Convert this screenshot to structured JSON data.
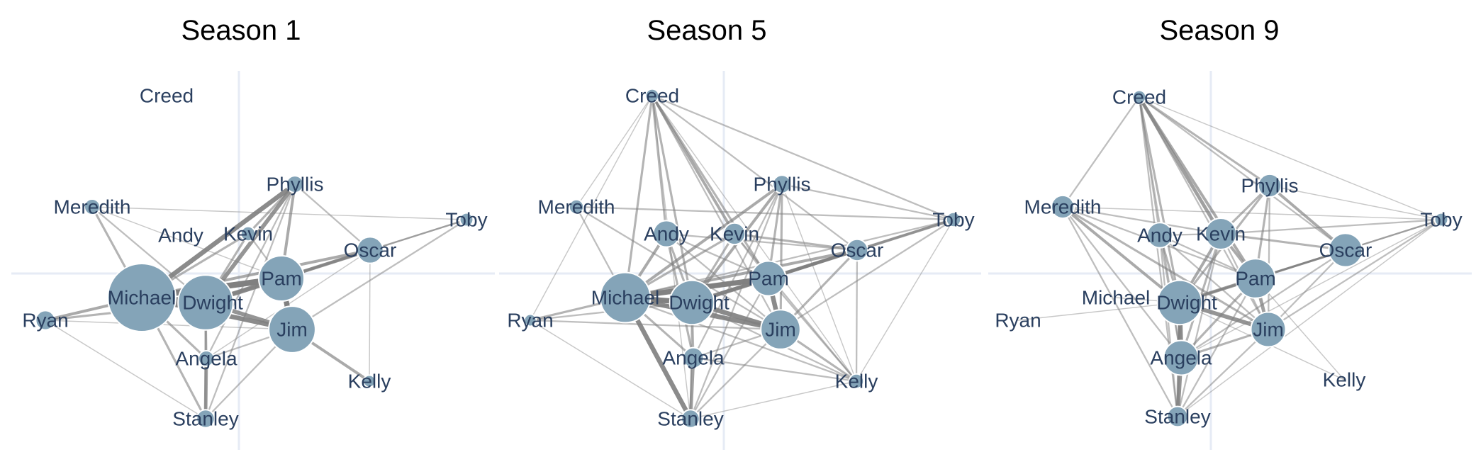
{
  "figure": {
    "node_color": "#84a4b8",
    "edge_color": "#808080",
    "label_color": "#2a3f5f",
    "axis_color": "#e6ebf5"
  },
  "panels": [
    {
      "title": "Season 1",
      "nodes": [
        {
          "name": "Creed",
          "size": 0
        },
        {
          "name": "Phyllis",
          "size": 14
        },
        {
          "name": "Meredith",
          "size": 12
        },
        {
          "name": "Toby",
          "size": 8
        },
        {
          "name": "Andy",
          "size": 0
        },
        {
          "name": "Kevin",
          "size": 10
        },
        {
          "name": "Oscar",
          "size": 30
        },
        {
          "name": "Pam",
          "size": 62
        },
        {
          "name": "Michael",
          "size": 100
        },
        {
          "name": "Dwight",
          "size": 78
        },
        {
          "name": "Ryan",
          "size": 18
        },
        {
          "name": "Jim",
          "size": 64
        },
        {
          "name": "Angela",
          "size": 12
        },
        {
          "name": "Kelly",
          "size": 6
        },
        {
          "name": "Stanley",
          "size": 16
        }
      ],
      "edges": [
        [
          "Michael",
          "Dwight",
          10
        ],
        [
          "Michael",
          "Pam",
          9
        ],
        [
          "Michael",
          "Jim",
          7
        ],
        [
          "Dwight",
          "Pam",
          7
        ],
        [
          "Dwight",
          "Jim",
          6
        ],
        [
          "Pam",
          "Jim",
          8
        ],
        [
          "Michael",
          "Phyllis",
          7
        ],
        [
          "Dwight",
          "Phyllis",
          6
        ],
        [
          "Pam",
          "Oscar",
          5
        ],
        [
          "Dwight",
          "Oscar",
          4
        ],
        [
          "Michael",
          "Oscar",
          4
        ],
        [
          "Phyllis",
          "Pam",
          4
        ],
        [
          "Michael",
          "Ryan",
          4
        ],
        [
          "Dwight",
          "Ryan",
          3
        ],
        [
          "Michael",
          "Meredith",
          3
        ],
        [
          "Meredith",
          "Dwight",
          2
        ],
        [
          "Michael",
          "Stanley",
          3
        ],
        [
          "Stanley",
          "Angela",
          5
        ],
        [
          "Stanley",
          "Dwight",
          3
        ],
        [
          "Stanley",
          "Jim",
          2
        ],
        [
          "Michael",
          "Angela",
          3
        ],
        [
          "Dwight",
          "Angela",
          3
        ],
        [
          "Jim",
          "Kelly",
          4
        ],
        [
          "Jim",
          "Angela",
          2
        ],
        [
          "Kevin",
          "Phyllis",
          3
        ],
        [
          "Kevin",
          "Michael",
          3
        ],
        [
          "Kevin",
          "Dwight",
          3
        ],
        [
          "Kevin",
          "Pam",
          2
        ],
        [
          "Toby",
          "Jim",
          2
        ],
        [
          "Toby",
          "Pam",
          2
        ],
        [
          "Toby",
          "Oscar",
          2
        ],
        [
          "Oscar",
          "Kelly",
          1
        ],
        [
          "Phyllis",
          "Oscar",
          2
        ],
        [
          "Meredith",
          "Pam",
          1
        ],
        [
          "Ryan",
          "Stanley",
          1
        ],
        [
          "Ryan",
          "Jim",
          1
        ],
        [
          "Meredith",
          "Toby",
          1
        ],
        [
          "Phyllis",
          "Angela",
          2
        ],
        [
          "Phyllis",
          "Stanley",
          2
        ],
        [
          "Oscar",
          "Angela",
          1
        ]
      ]
    },
    {
      "title": "Season 5",
      "nodes": [
        {
          "name": "Creed",
          "size": 8
        },
        {
          "name": "Phyllis",
          "size": 16
        },
        {
          "name": "Meredith",
          "size": 10
        },
        {
          "name": "Toby",
          "size": 10
        },
        {
          "name": "Andy",
          "size": 30
        },
        {
          "name": "Kevin",
          "size": 22
        },
        {
          "name": "Oscar",
          "size": 22
        },
        {
          "name": "Pam",
          "size": 44
        },
        {
          "name": "Michael",
          "size": 70
        },
        {
          "name": "Dwight",
          "size": 60
        },
        {
          "name": "Ryan",
          "size": 6
        },
        {
          "name": "Jim",
          "size": 52
        },
        {
          "name": "Angela",
          "size": 20
        },
        {
          "name": "Kelly",
          "size": 10
        },
        {
          "name": "Stanley",
          "size": 16
        }
      ],
      "edges": [
        [
          "Michael",
          "Dwight",
          8
        ],
        [
          "Michael",
          "Pam",
          8
        ],
        [
          "Michael",
          "Jim",
          7
        ],
        [
          "Dwight",
          "Jim",
          7
        ],
        [
          "Pam",
          "Jim",
          7
        ],
        [
          "Dwight",
          "Pam",
          6
        ],
        [
          "Michael",
          "Stanley",
          7
        ],
        [
          "Angela",
          "Stanley",
          5
        ],
        [
          "Dwight",
          "Oscar",
          5
        ],
        [
          "Pam",
          "Oscar",
          5
        ],
        [
          "Michael",
          "Oscar",
          4
        ],
        [
          "Toby",
          "Pam",
          4
        ],
        [
          "Toby",
          "Dwight",
          3
        ],
        [
          "Creed",
          "Kevin",
          4
        ],
        [
          "Creed",
          "Andy",
          3
        ],
        [
          "Creed",
          "Michael",
          3
        ],
        [
          "Creed",
          "Pam",
          3
        ],
        [
          "Creed",
          "Dwight",
          3
        ],
        [
          "Creed",
          "Jim",
          2
        ],
        [
          "Creed",
          "Toby",
          2
        ],
        [
          "Creed",
          "Oscar",
          2
        ],
        [
          "Creed",
          "Kelly",
          1
        ],
        [
          "Creed",
          "Ryan",
          1
        ],
        [
          "Creed",
          "Meredith",
          1
        ],
        [
          "Creed",
          "Stanley",
          1
        ],
        [
          "Phyllis",
          "Dwight",
          4
        ],
        [
          "Phyllis",
          "Michael",
          4
        ],
        [
          "Phyllis",
          "Pam",
          3
        ],
        [
          "Phyllis",
          "Jim",
          3
        ],
        [
          "Phyllis",
          "Angela",
          2
        ],
        [
          "Phyllis",
          "Stanley",
          2
        ],
        [
          "Phyllis",
          "Toby",
          2
        ],
        [
          "Phyllis",
          "Kelly",
          1
        ],
        [
          "Andy",
          "Michael",
          4
        ],
        [
          "Andy",
          "Dwight",
          3
        ],
        [
          "Andy",
          "Angela",
          3
        ],
        [
          "Andy",
          "Jim",
          2
        ],
        [
          "Kevin",
          "Michael",
          3
        ],
        [
          "Kevin",
          "Dwight",
          3
        ],
        [
          "Kevin",
          "Oscar",
          3
        ],
        [
          "Kevin",
          "Kelly",
          2
        ],
        [
          "Meredith",
          "Michael",
          2
        ],
        [
          "Meredith",
          "Jim",
          2
        ],
        [
          "Meredith",
          "Toby",
          2
        ],
        [
          "Ryan",
          "Michael",
          3
        ],
        [
          "Ryan",
          "Dwight",
          2
        ],
        [
          "Ryan",
          "Jim",
          2
        ],
        [
          "Ryan",
          "Stanley",
          1
        ],
        [
          "Kelly",
          "Jim",
          3
        ],
        [
          "Kelly",
          "Dwight",
          2
        ],
        [
          "Kelly",
          "Michael",
          2
        ],
        [
          "Kelly",
          "Pam",
          2
        ],
        [
          "Kelly",
          "Angela",
          2
        ],
        [
          "Kelly",
          "Stanley",
          1
        ],
        [
          "Kelly",
          "Toby",
          1
        ],
        [
          "Kelly",
          "Oscar",
          2
        ],
        [
          "Stanley",
          "Jim",
          2
        ],
        [
          "Stanley",
          "Dwight",
          2
        ],
        [
          "Stanley",
          "Pam",
          2
        ],
        [
          "Angela",
          "Michael",
          3
        ],
        [
          "Angela",
          "Dwight",
          3
        ],
        [
          "Angela",
          "Jim",
          2
        ],
        [
          "Oscar",
          "Jim",
          3
        ],
        [
          "Toby",
          "Jim",
          2
        ],
        [
          "Toby",
          "Michael",
          2
        ],
        [
          "Andy",
          "Pam",
          2
        ],
        [
          "Andy",
          "Oscar",
          2
        ],
        [
          "Kevin",
          "Pam",
          2
        ]
      ]
    },
    {
      "title": "Season 9",
      "nodes": [
        {
          "name": "Creed",
          "size": 8
        },
        {
          "name": "Phyllis",
          "size": 24
        },
        {
          "name": "Meredith",
          "size": 24
        },
        {
          "name": "Toby",
          "size": 8
        },
        {
          "name": "Andy",
          "size": 28
        },
        {
          "name": "Kevin",
          "size": 38
        },
        {
          "name": "Oscar",
          "size": 42
        },
        {
          "name": "Pam",
          "size": 52
        },
        {
          "name": "Michael",
          "size": 0
        },
        {
          "name": "Dwight",
          "size": 60
        },
        {
          "name": "Ryan",
          "size": 0
        },
        {
          "name": "Jim",
          "size": 44
        },
        {
          "name": "Angela",
          "size": 44
        },
        {
          "name": "Kelly",
          "size": 0
        },
        {
          "name": "Stanley",
          "size": 20
        }
      ],
      "edges": [
        [
          "Dwight",
          "Pam",
          5
        ],
        [
          "Dwight",
          "Jim",
          6
        ],
        [
          "Pam",
          "Jim",
          5
        ],
        [
          "Dwight",
          "Angela",
          7
        ],
        [
          "Angela",
          "Stanley",
          6
        ],
        [
          "Dwight",
          "Stanley",
          4
        ],
        [
          "Dwight",
          "Kevin",
          4
        ],
        [
          "Kevin",
          "Pam",
          4
        ],
        [
          "Creed",
          "Kevin",
          5
        ],
        [
          "Creed",
          "Pam",
          4
        ],
        [
          "Creed",
          "Dwight",
          3
        ],
        [
          "Creed",
          "Phyllis",
          3
        ],
        [
          "Creed",
          "Meredith",
          2
        ],
        [
          "Creed",
          "Stanley",
          2
        ],
        [
          "Creed",
          "Angela",
          2
        ],
        [
          "Creed",
          "Jim",
          2
        ],
        [
          "Creed",
          "Andy",
          2
        ],
        [
          "Creed",
          "Oscar",
          2
        ],
        [
          "Phyllis",
          "Oscar",
          4
        ],
        [
          "Phyllis",
          "Pam",
          3
        ],
        [
          "Phyllis",
          "Kevin",
          3
        ],
        [
          "Phyllis",
          "Dwight",
          3
        ],
        [
          "Phyllis",
          "Jim",
          2
        ],
        [
          "Phyllis",
          "Toby",
          1
        ],
        [
          "Meredith",
          "Dwight",
          4
        ],
        [
          "Meredith",
          "Jim",
          3
        ],
        [
          "Meredith",
          "Pam",
          2
        ],
        [
          "Meredith",
          "Stanley",
          2
        ],
        [
          "Meredith",
          "Angela",
          2
        ],
        [
          "Meredith",
          "Kevin",
          2
        ],
        [
          "Andy",
          "Dwight",
          3
        ],
        [
          "Andy",
          "Pam",
          2
        ],
        [
          "Andy",
          "Angela",
          2
        ],
        [
          "Andy",
          "Stanley",
          2
        ],
        [
          "Andy",
          "Jim",
          2
        ],
        [
          "Andy",
          "Kevin",
          2
        ],
        [
          "Kevin",
          "Oscar",
          3
        ],
        [
          "Kevin",
          "Angela",
          3
        ],
        [
          "Kevin",
          "Stanley",
          2
        ],
        [
          "Kevin",
          "Jim",
          2
        ],
        [
          "Oscar",
          "Pam",
          3
        ],
        [
          "Oscar",
          "Dwight",
          3
        ],
        [
          "Oscar",
          "Jim",
          2
        ],
        [
          "Oscar",
          "Angela",
          2
        ],
        [
          "Toby",
          "Pam",
          2
        ],
        [
          "Toby",
          "Kevin",
          2
        ],
        [
          "Toby",
          "Dwight",
          2
        ],
        [
          "Toby",
          "Jim",
          2
        ],
        [
          "Toby",
          "Stanley",
          1
        ],
        [
          "Toby",
          "Meredith",
          1
        ],
        [
          "Toby",
          "Angela",
          1
        ],
        [
          "Jim",
          "Angela",
          3
        ],
        [
          "Jim",
          "Stanley",
          2
        ],
        [
          "Pam",
          "Angela",
          3
        ],
        [
          "Pam",
          "Stanley",
          2
        ],
        [
          "Ryan",
          "Dwight",
          1
        ],
        [
          "Kelly",
          "Dwight",
          1
        ],
        [
          "Kelly",
          "Pam",
          1
        ],
        [
          "Michael",
          "Dwight",
          1
        ],
        [
          "Toby",
          "Creed",
          1
        ]
      ]
    }
  ]
}
